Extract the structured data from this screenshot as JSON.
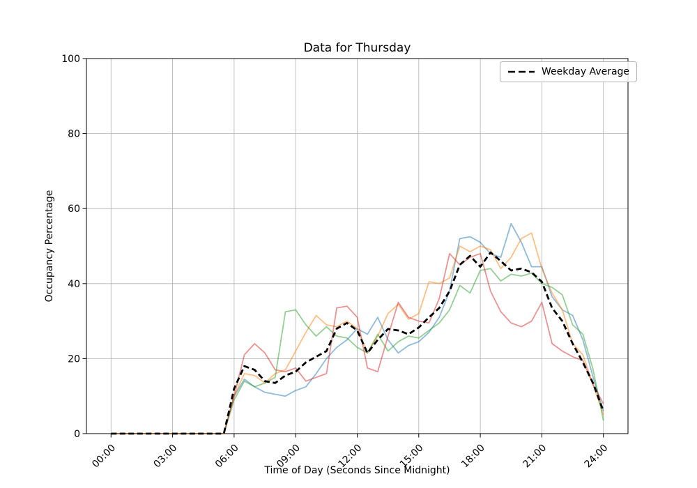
{
  "chart_data": {
    "type": "line",
    "title": "Data for Thursday",
    "xlabel": "Time of Day (Seconds Since Midnight)",
    "ylabel": "Occupancy Percentage",
    "ylim": [
      0,
      100
    ],
    "xlim_hours": [
      0,
      24
    ],
    "grid": true,
    "legend": {
      "position": "upper right",
      "entries": [
        "Weekday Average"
      ]
    },
    "y_ticks": [
      0,
      20,
      40,
      60,
      80,
      100
    ],
    "x_tick_hours": [
      0,
      3,
      6,
      9,
      12,
      15,
      18,
      21,
      24
    ],
    "x_tick_labels": [
      "00:00",
      "03:00",
      "06:00",
      "09:00",
      "12:00",
      "15:00",
      "18:00",
      "21:00",
      "24:00"
    ],
    "hours": [
      0,
      0.5,
      1,
      1.5,
      2,
      2.5,
      3,
      3.5,
      4,
      4.5,
      5,
      5.5,
      6,
      6.5,
      7,
      7.5,
      8,
      8.5,
      9,
      9.5,
      10,
      10.5,
      11,
      11.5,
      12,
      12.5,
      13,
      13.5,
      14,
      14.5,
      15,
      15.5,
      16,
      16.5,
      17,
      17.5,
      18,
      18.5,
      19,
      19.5,
      20,
      20.5,
      21,
      21.5,
      22,
      22.5,
      23,
      23.5,
      24
    ],
    "series": [
      {
        "name": "day-line-blue",
        "color": "#1f77b4",
        "opacity": 0.5,
        "width": 1.8,
        "dash": "",
        "values": [
          0,
          0,
          0,
          0,
          0,
          0,
          0,
          0,
          0,
          0,
          0,
          0,
          10,
          14.5,
          12.5,
          11,
          10.5,
          10,
          11.5,
          12.5,
          16,
          20,
          23,
          25,
          28,
          26.5,
          31,
          25,
          21.5,
          23.5,
          24.5,
          27,
          31,
          38,
          52,
          52.5,
          51,
          48,
          47,
          56,
          51,
          44.5,
          44.5,
          36.5,
          33,
          31.5,
          25,
          15,
          6
        ]
      },
      {
        "name": "day-line-orange",
        "color": "#ff7f0e",
        "opacity": 0.5,
        "width": 1.8,
        "dash": "",
        "values": [
          0,
          0,
          0,
          0,
          0,
          0,
          0,
          0,
          0,
          0,
          0,
          0,
          10,
          16,
          15.5,
          13.5,
          16,
          17,
          22,
          27,
          31.5,
          29,
          28.5,
          30,
          28,
          21.5,
          26,
          32,
          34.5,
          30.5,
          32,
          40.5,
          40,
          41.5,
          50,
          48.5,
          50,
          49,
          44,
          47,
          52,
          53.5,
          44,
          37.5,
          33,
          24,
          21,
          13,
          5
        ]
      },
      {
        "name": "day-line-green",
        "color": "#2ca02c",
        "opacity": 0.5,
        "width": 1.8,
        "dash": "",
        "values": [
          0,
          0,
          0,
          0,
          0,
          0,
          0,
          0,
          0,
          0,
          0,
          0,
          9,
          14,
          12.5,
          13.5,
          15,
          32.5,
          33,
          29,
          26,
          28.5,
          26,
          25.5,
          23,
          21.5,
          26.5,
          22,
          24.5,
          26,
          25.5,
          27.5,
          29.5,
          33,
          39.5,
          37.5,
          43.5,
          44,
          40.7,
          42.5,
          42,
          42.8,
          40,
          39,
          37,
          29,
          26.5,
          17,
          3.5
        ]
      },
      {
        "name": "day-line-red",
        "color": "#d62728",
        "opacity": 0.5,
        "width": 1.8,
        "dash": "",
        "values": [
          0,
          0,
          0,
          0,
          0,
          0,
          0,
          0,
          0,
          0,
          0,
          0,
          10,
          21,
          24,
          21.5,
          17,
          16.5,
          17.5,
          14,
          15,
          16,
          33.5,
          34,
          31,
          17.5,
          16.5,
          26,
          35,
          31,
          30,
          29.5,
          36,
          48,
          45,
          47,
          48,
          38,
          32.5,
          29.5,
          28.5,
          30,
          35,
          24,
          22,
          20.5,
          19.5,
          13,
          8
        ]
      },
      {
        "name": "weekday-average",
        "color": "#000000",
        "opacity": 1,
        "width": 2.8,
        "dash": "8 4.5",
        "values": [
          0,
          0,
          0,
          0,
          0,
          0,
          0,
          0,
          0,
          0,
          0,
          0,
          12,
          18,
          17,
          14,
          13.5,
          15.5,
          16.5,
          19,
          20.5,
          22,
          28,
          29.5,
          27.5,
          21.5,
          25,
          27.9,
          27.5,
          26.5,
          28.3,
          31,
          33.5,
          38,
          45,
          47.4,
          44.5,
          48.3,
          46,
          43.5,
          44,
          43,
          40.5,
          33.5,
          30,
          24,
          19,
          13.4,
          6
        ]
      }
    ],
    "colors": {
      "grid": "#b0b0b0",
      "spine": "#000000",
      "background": "#ffffff"
    }
  }
}
